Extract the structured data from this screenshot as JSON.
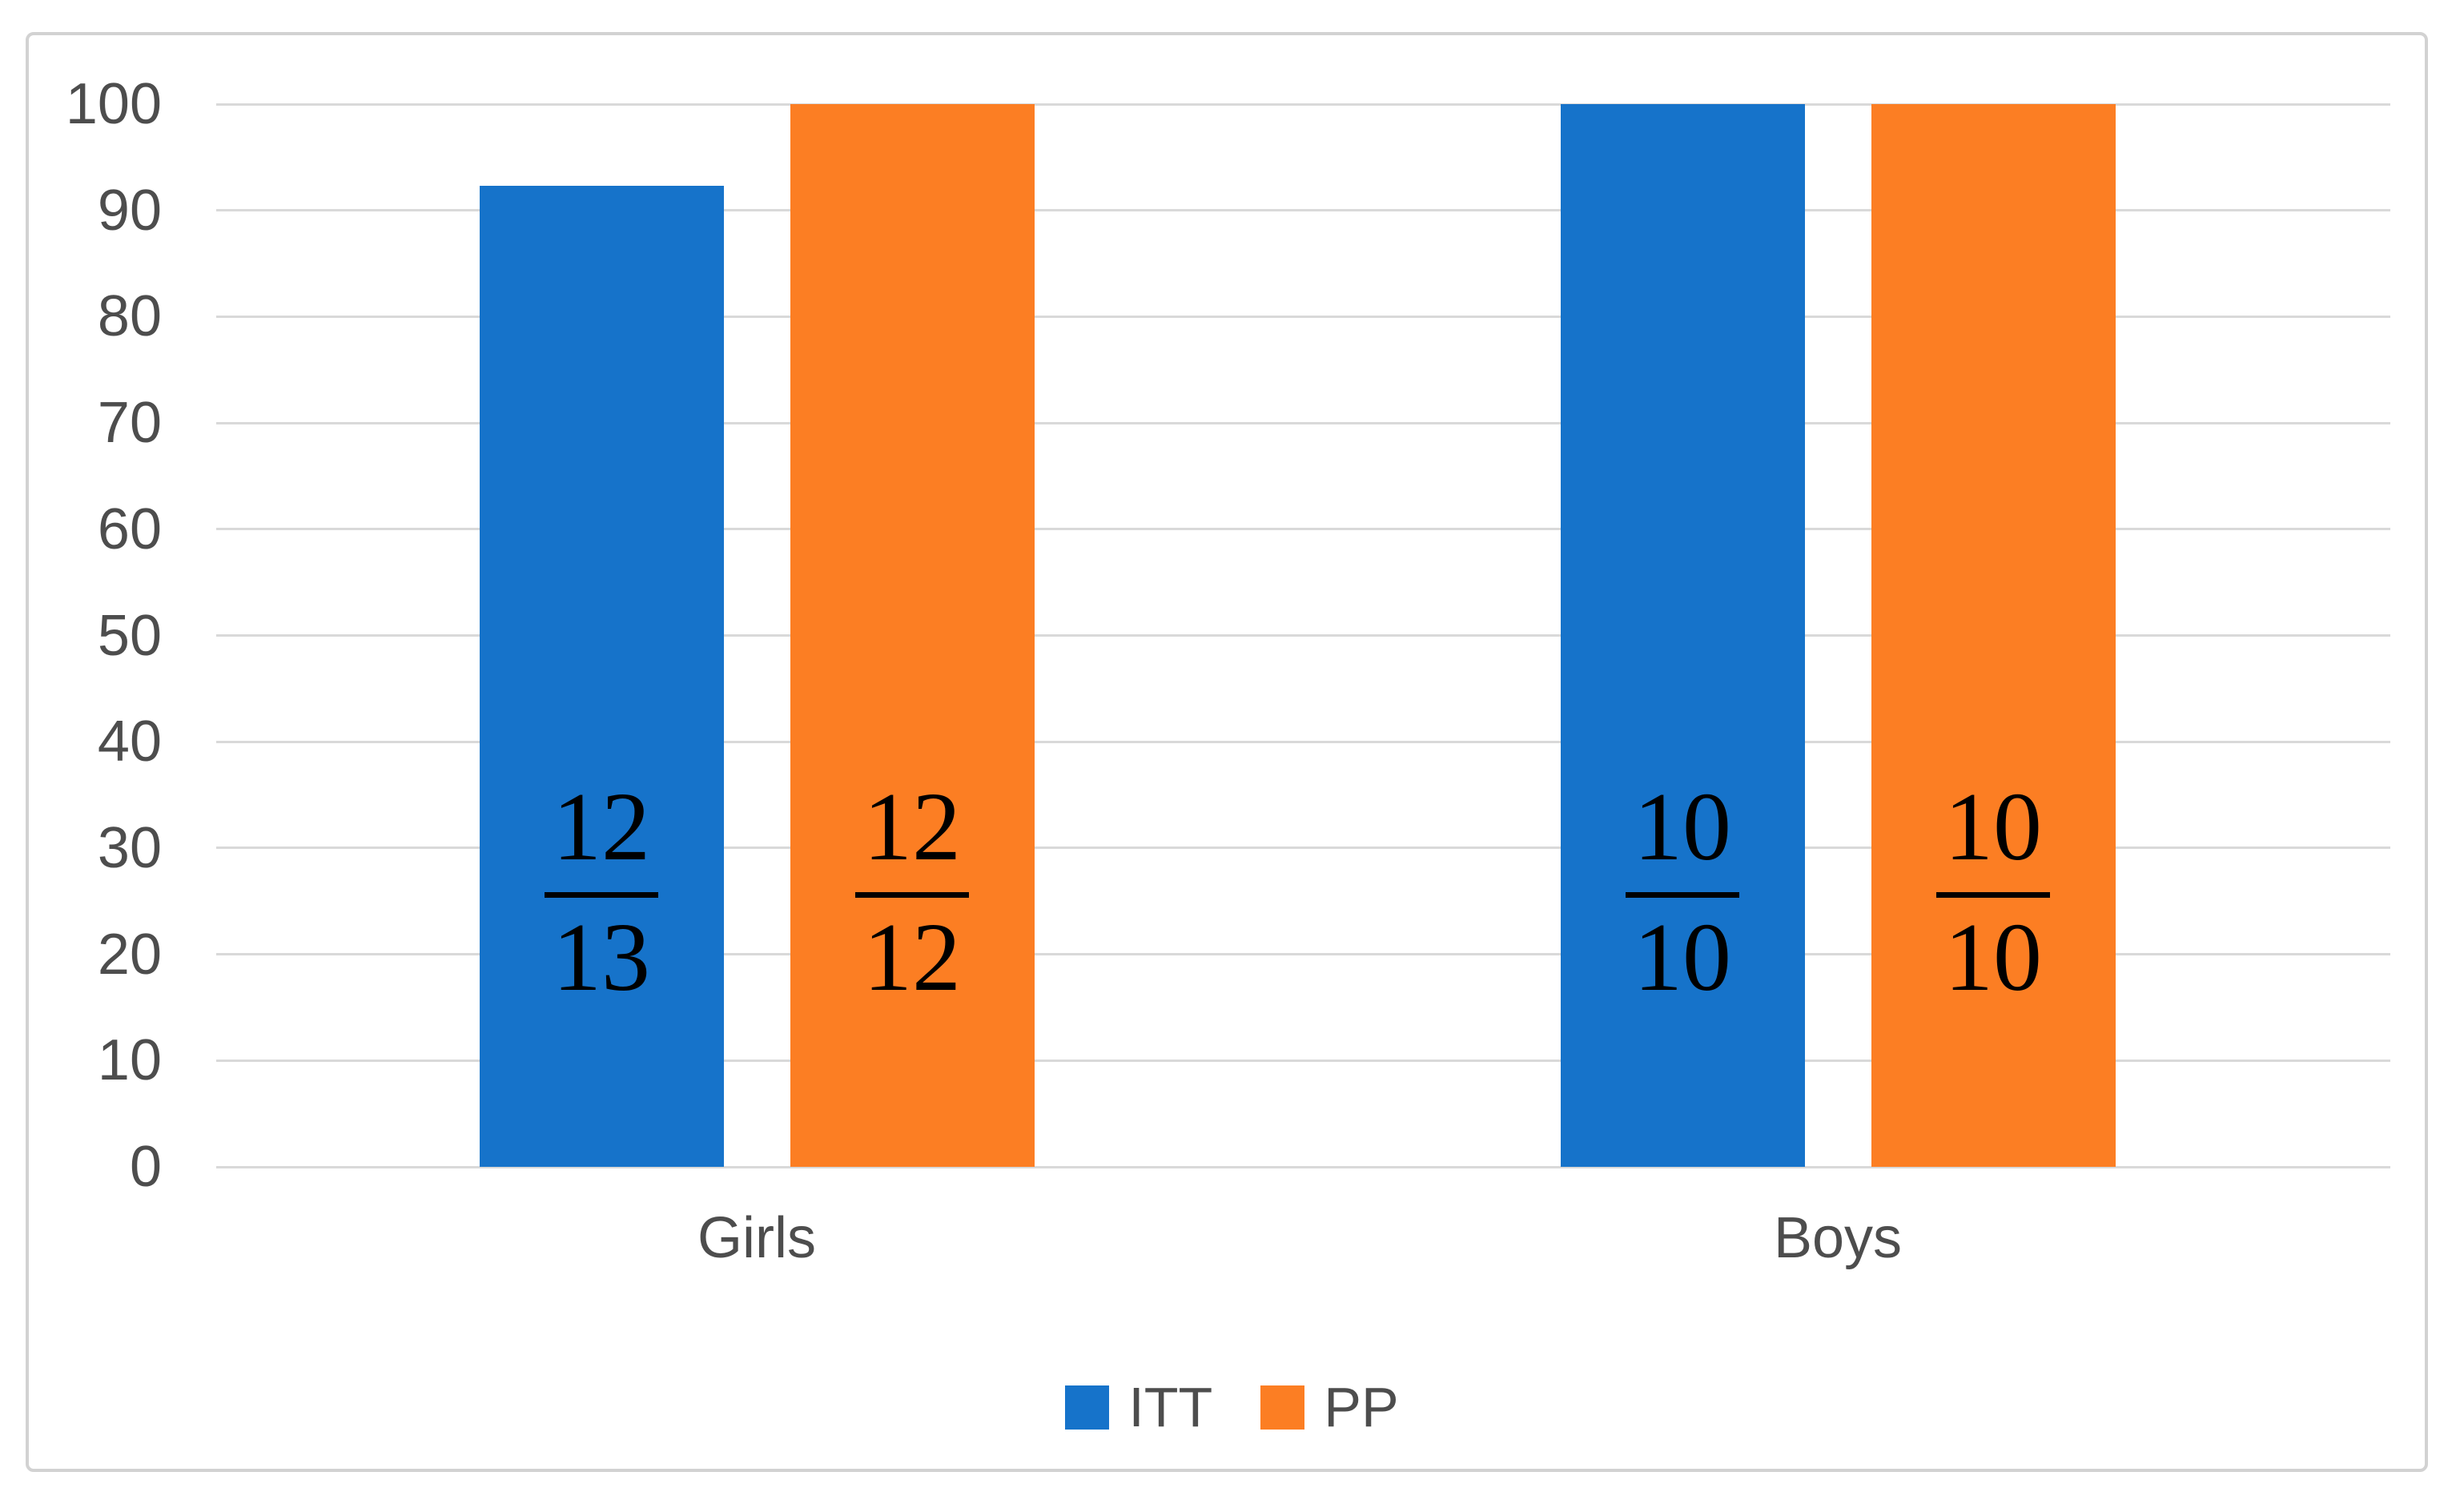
{
  "chart_data": {
    "type": "bar",
    "title": "",
    "xlabel": "",
    "ylabel": "",
    "categories": [
      "Girls",
      "Boys"
    ],
    "series": [
      {
        "name": "ITT",
        "color": "#1673CA",
        "values": [
          92.3,
          100
        ],
        "data_labels": [
          {
            "num": "12",
            "den": "13"
          },
          {
            "num": "10",
            "den": "10"
          }
        ]
      },
      {
        "name": "PP",
        "color": "#FC7E23",
        "values": [
          100,
          100
        ],
        "data_labels": [
          {
            "num": "12",
            "den": "12"
          },
          {
            "num": "10",
            "den": "10"
          }
        ]
      }
    ],
    "ylim": [
      0,
      100
    ],
    "yticks": [
      100,
      90,
      80,
      70,
      60,
      50,
      40,
      30,
      20,
      10,
      0
    ],
    "grid": true,
    "legend_position": "bottom",
    "gridline_color": "#D9D9D9",
    "axis_text_color": "#4D4D4D",
    "label_text_color": "#000000",
    "frame_border_color": "#D2D2D2"
  }
}
